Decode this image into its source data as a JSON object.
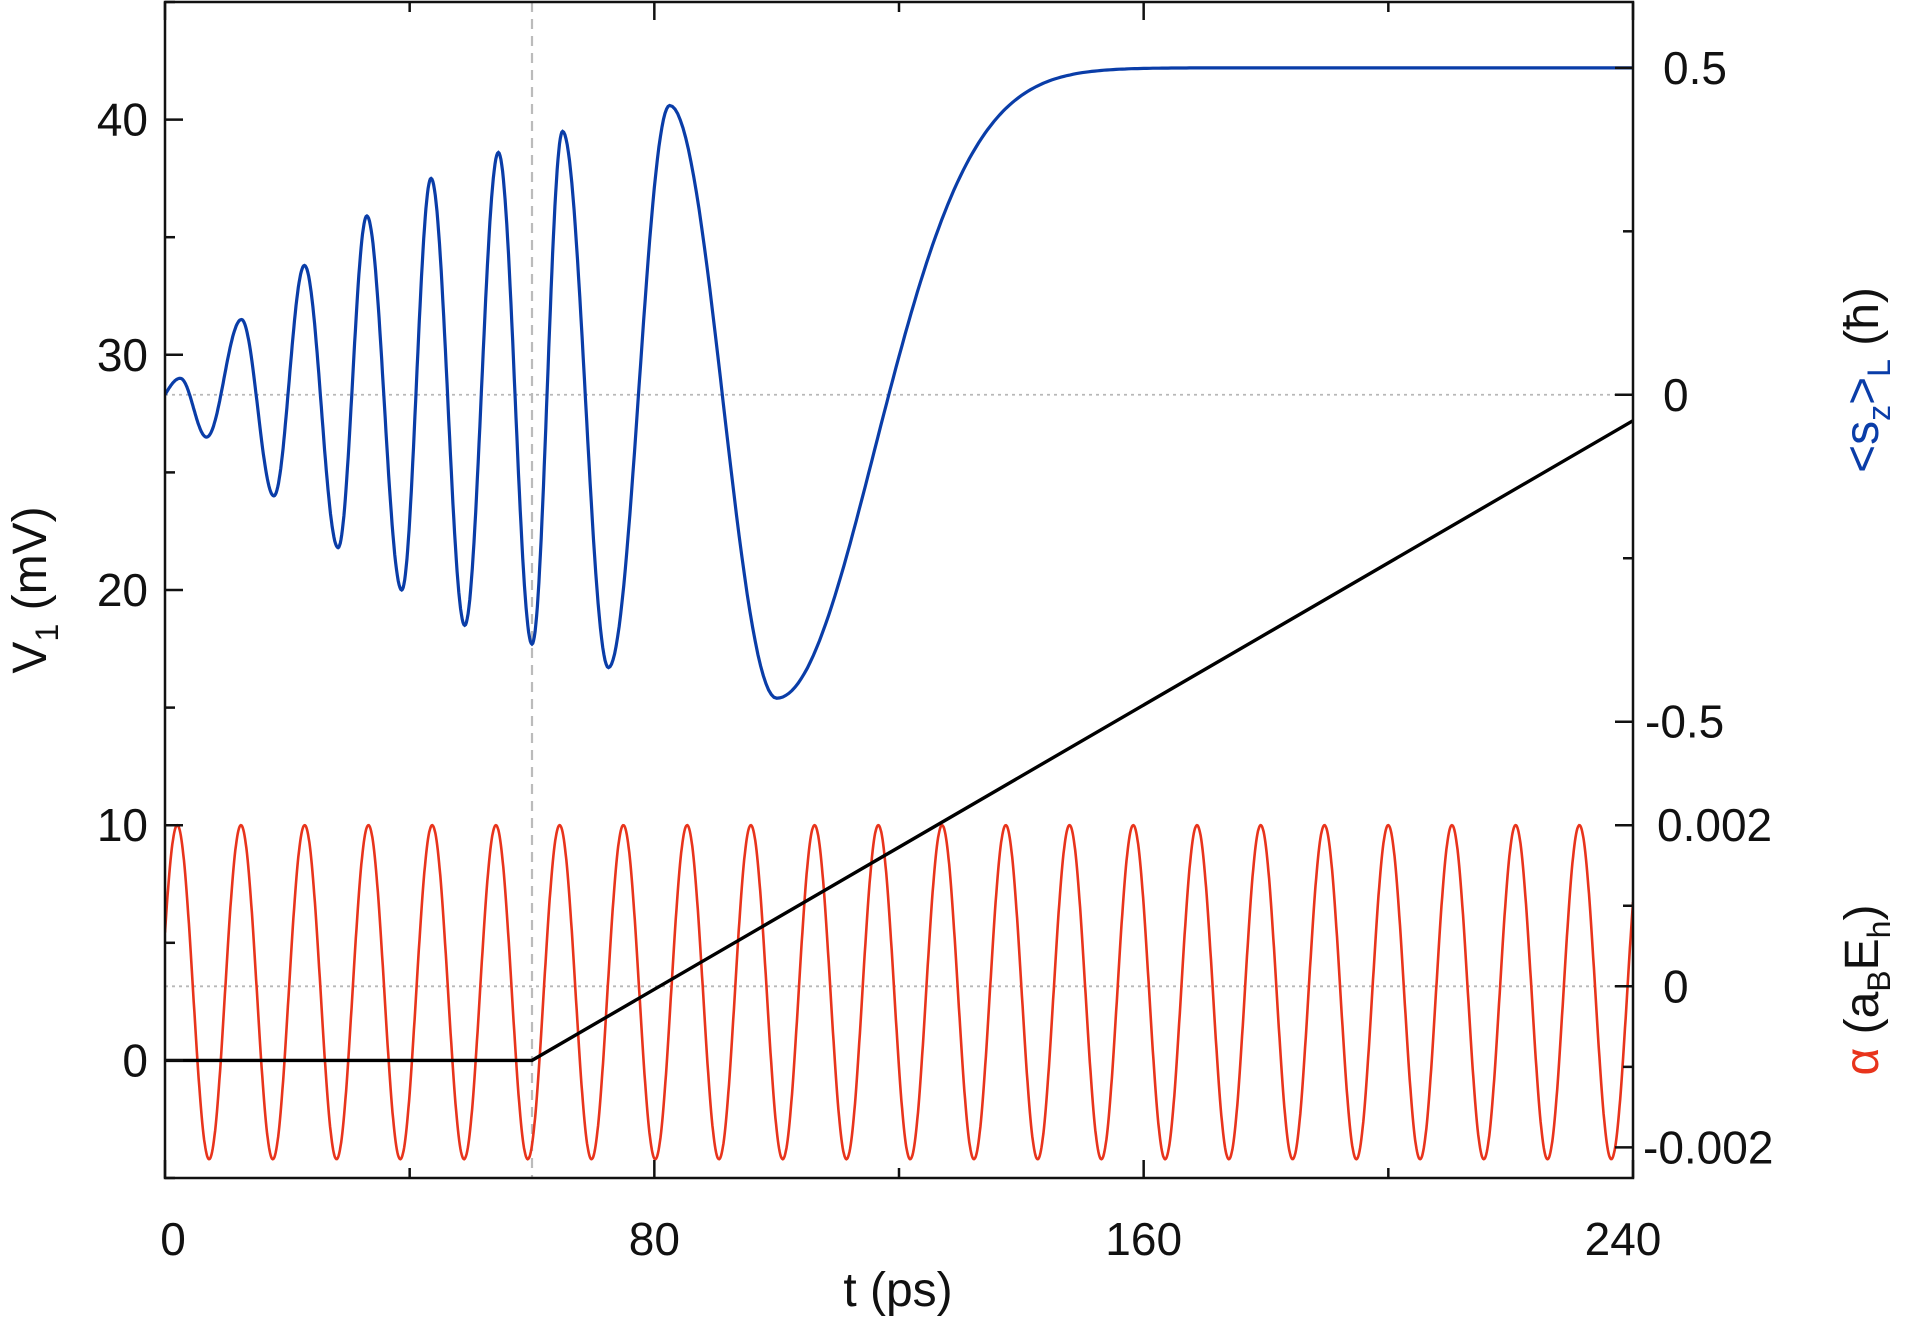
{
  "chart_data": {
    "type": "line",
    "x": {
      "label": "t (ps)",
      "range": [
        0,
        240
      ],
      "ticks": [
        0,
        80,
        160,
        240
      ],
      "tick_labels": [
        "0",
        "80",
        "160",
        "240"
      ]
    },
    "y_left": {
      "label_main": "V",
      "label_sub": "1",
      "label_rest": " (mV)",
      "range": [
        -5,
        45
      ],
      "ticks": [
        0,
        10,
        20,
        30,
        40
      ],
      "tick_labels": [
        "0",
        "10",
        "20",
        "30",
        "40"
      ]
    },
    "y_right_top": {
      "label_open": "<s",
      "label_sub_z": "z",
      "label_close": ">",
      "label_sub_L": "L",
      "label_unit": " (ħ)",
      "ticks": [
        0.5,
        0,
        -0.5
      ],
      "tick_labels": [
        "0.5",
        "0",
        "-0.5"
      ],
      "color": "#0a3da8"
    },
    "y_right_bottom": {
      "label_alpha": "α",
      "label_open": " (a",
      "label_sub_B": "B",
      "label_E": "E",
      "label_sub_h": "h",
      "label_close": ")",
      "ticks": [
        0.002,
        0,
        -0.002
      ],
      "tick_labels": [
        "0.002",
        "0",
        "-0.002"
      ],
      "color": "#e8341c"
    },
    "grid": "dotted reference lines at <sz>L = 0 and α = 0",
    "marker_line": {
      "x": 60,
      "style": "dashed",
      "color": "#bbbbbb"
    },
    "series": [
      {
        "color": "#000000",
        "axis": "left",
        "points": [
          [
            0,
            0
          ],
          [
            60,
            0
          ],
          [
            240,
            27.2
          ]
        ]
      },
      {
        "color": "#0a3da8",
        "axis": "right_top",
        "peaks": [
          [
            2.5,
            29.0
          ],
          [
            6.8,
            26.5
          ],
          [
            12.5,
            31.5
          ],
          [
            17.8,
            24.0
          ],
          [
            22.8,
            33.8
          ],
          [
            28.3,
            21.8
          ],
          [
            33.0,
            35.9
          ],
          [
            38.7,
            20.0
          ],
          [
            43.5,
            37.5
          ],
          [
            49.0,
            18.5
          ],
          [
            54.5,
            38.6
          ],
          [
            60.0,
            17.7
          ],
          [
            65.0,
            39.5
          ],
          [
            72.5,
            16.7
          ],
          [
            82.5,
            40.6
          ],
          [
            100.0,
            15.4
          ]
        ],
        "start": [
          0,
          28.3
        ],
        "plateau": 42.2
      },
      {
        "color": "#e8341c",
        "axis": "right_bottom",
        "period_ps": 10.42,
        "max": 10,
        "min": -4.2,
        "first_peak": 2
      }
    ]
  }
}
